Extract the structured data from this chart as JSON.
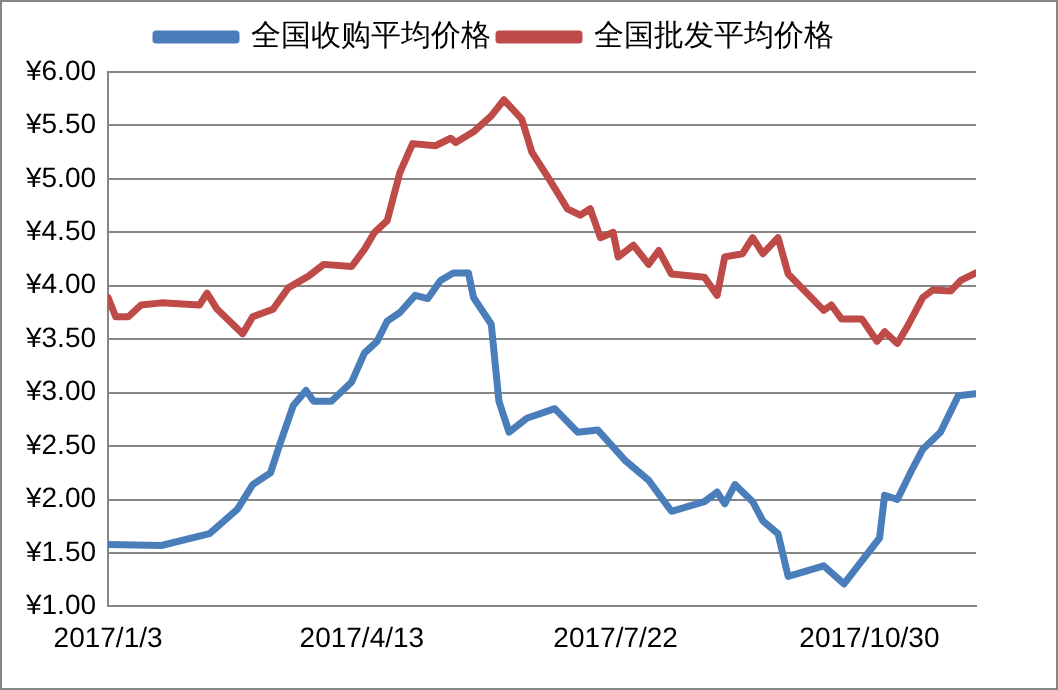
{
  "chart_data": {
    "type": "line",
    "series": [
      {
        "name": "全国收购平均价格",
        "color": "#4a7ebb",
        "x": [
          "2017-01-03",
          "2017-01-24",
          "2017-02-12",
          "2017-02-23",
          "2017-03-01",
          "2017-03-08",
          "2017-03-12",
          "2017-03-17",
          "2017-03-22",
          "2017-03-25",
          "2017-04-01",
          "2017-04-09",
          "2017-04-14",
          "2017-04-19",
          "2017-04-23",
          "2017-04-28",
          "2017-05-04",
          "2017-05-09",
          "2017-05-14",
          "2017-05-19",
          "2017-05-25",
          "2017-05-27",
          "2017-06-03",
          "2017-06-06",
          "2017-06-10",
          "2017-06-17",
          "2017-06-28",
          "2017-07-07",
          "2017-07-15",
          "2017-07-26",
          "2017-08-04",
          "2017-08-13",
          "2017-08-26",
          "2017-08-31",
          "2017-09-03",
          "2017-09-07",
          "2017-09-14",
          "2017-09-18",
          "2017-09-24",
          "2017-09-28",
          "2017-10-12",
          "2017-10-20",
          "2017-11-03",
          "2017-11-05",
          "2017-11-10",
          "2017-11-16",
          "2017-11-20",
          "2017-11-27",
          "2017-12-04",
          "2017-12-11"
        ],
        "values": [
          1.58,
          1.57,
          1.68,
          1.91,
          2.14,
          2.25,
          2.54,
          2.88,
          3.02,
          2.92,
          2.92,
          3.1,
          3.37,
          3.48,
          3.67,
          3.75,
          3.91,
          3.88,
          4.05,
          4.12,
          4.12,
          3.89,
          3.64,
          2.92,
          2.63,
          2.76,
          2.85,
          2.63,
          2.65,
          2.36,
          2.18,
          1.89,
          1.98,
          2.07,
          1.96,
          2.14,
          1.98,
          1.8,
          1.68,
          1.28,
          1.38,
          1.21,
          1.64,
          2.04,
          2.0,
          2.29,
          2.47,
          2.63,
          2.97,
          2.99
        ]
      },
      {
        "name": "全国批发平均价格",
        "color": "#be4b48",
        "x": [
          "2017-01-03",
          "2017-01-06",
          "2017-01-11",
          "2017-01-16",
          "2017-01-24",
          "2017-02-08",
          "2017-02-11",
          "2017-02-15",
          "2017-02-25",
          "2017-03-01",
          "2017-03-09",
          "2017-03-15",
          "2017-03-23",
          "2017-03-29",
          "2017-04-09",
          "2017-04-14",
          "2017-04-18",
          "2017-04-23",
          "2017-04-28",
          "2017-05-03",
          "2017-05-12",
          "2017-05-18",
          "2017-05-20",
          "2017-05-27",
          "2017-06-03",
          "2017-06-08",
          "2017-06-15",
          "2017-06-19",
          "2017-06-26",
          "2017-07-03",
          "2017-07-08",
          "2017-07-12",
          "2017-07-16",
          "2017-07-21",
          "2017-07-23",
          "2017-07-29",
          "2017-08-04",
          "2017-08-08",
          "2017-08-13",
          "2017-08-26",
          "2017-08-31",
          "2017-09-03",
          "2017-09-10",
          "2017-09-14",
          "2017-09-18",
          "2017-09-24",
          "2017-09-28",
          "2017-10-12",
          "2017-10-15",
          "2017-10-19",
          "2017-10-27",
          "2017-11-02",
          "2017-11-05",
          "2017-11-10",
          "2017-11-14",
          "2017-11-20",
          "2017-11-24",
          "2017-12-01",
          "2017-12-05",
          "2017-12-11"
        ],
        "values": [
          3.89,
          3.71,
          3.71,
          3.82,
          3.84,
          3.82,
          3.93,
          3.78,
          3.55,
          3.71,
          3.78,
          3.98,
          4.09,
          4.2,
          4.18,
          4.34,
          4.5,
          4.61,
          5.06,
          5.33,
          5.31,
          5.38,
          5.34,
          5.44,
          5.59,
          5.74,
          5.56,
          5.25,
          4.99,
          4.72,
          4.66,
          4.72,
          4.45,
          4.5,
          4.27,
          4.38,
          4.2,
          4.33,
          4.11,
          4.08,
          3.91,
          4.27,
          4.3,
          4.45,
          4.3,
          4.45,
          4.11,
          3.77,
          3.82,
          3.69,
          3.69,
          3.48,
          3.57,
          3.46,
          3.62,
          3.89,
          3.96,
          3.95,
          4.05,
          4.12
        ]
      }
    ],
    "xlim": [
      "2017-01-03",
      "2017-12-11"
    ],
    "xticks": [
      {
        "value": "2017-01-03",
        "label": "2017/1/3"
      },
      {
        "value": "2017-04-13",
        "label": "2017/4/13"
      },
      {
        "value": "2017-07-22",
        "label": "2017/7/22"
      },
      {
        "value": "2017-10-30",
        "label": "2017/10/30"
      }
    ],
    "ylim": [
      1,
      6
    ],
    "yticks": [
      {
        "value": 1,
        "label": "¥1.00"
      },
      {
        "value": 1.5,
        "label": "¥1.50"
      },
      {
        "value": 2,
        "label": "¥2.00"
      },
      {
        "value": 2.5,
        "label": "¥2.50"
      },
      {
        "value": 3,
        "label": "¥3.00"
      },
      {
        "value": 3.5,
        "label": "¥3.50"
      },
      {
        "value": 4,
        "label": "¥4.00"
      },
      {
        "value": 4.5,
        "label": "¥4.50"
      },
      {
        "value": 5,
        "label": "¥5.00"
      },
      {
        "value": 5.5,
        "label": "¥5.50"
      },
      {
        "value": 6,
        "label": "¥6.00"
      }
    ],
    "grid": "y",
    "legend": "top",
    "marker": "none",
    "line_style": "solid"
  }
}
